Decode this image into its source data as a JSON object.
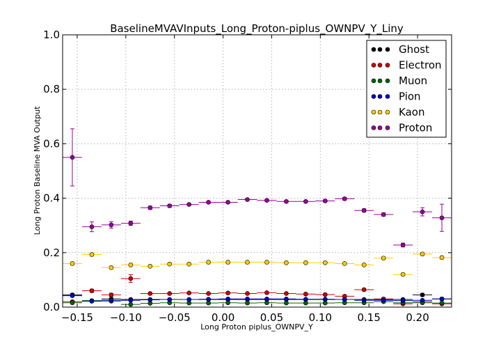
{
  "chart_data": {
    "type": "scatter",
    "title": "BaselineMVAVInputs_Long_Proton-piplus_OWNPV_Y_Liny",
    "xlabel": "Long Proton piplus_OWNPV_Y",
    "ylabel": "Long Proton Baseline MVA Output",
    "xlim": [
      -0.165,
      0.235
    ],
    "ylim": [
      0.0,
      1.0
    ],
    "x_ticks": [
      "−0.15",
      "−0.10",
      "−0.05",
      "0.00",
      "0.05",
      "0.10",
      "0.15",
      "0.20"
    ],
    "y_ticks": [
      "0.0",
      "0.2",
      "0.4",
      "0.6",
      "0.8",
      "1.0"
    ],
    "grid": true,
    "legend_position": "top-right",
    "bin_half_width": 0.01,
    "x": [
      -0.155,
      -0.135,
      -0.115,
      -0.095,
      -0.075,
      -0.055,
      -0.035,
      -0.015,
      0.005,
      0.025,
      0.045,
      0.065,
      0.085,
      0.105,
      0.125,
      0.145,
      0.165,
      0.185,
      0.205,
      0.225
    ],
    "series": [
      {
        "name": "Ghost",
        "color": "#000000",
        "values": [
          0.045,
          0.022,
          0.03,
          0.028,
          0.028,
          0.028,
          0.028,
          0.028,
          0.028,
          0.028,
          0.028,
          0.028,
          0.028,
          0.028,
          0.028,
          0.028,
          0.028,
          0.028,
          0.045,
          0.03
        ],
        "errors": [
          0.005,
          0.003,
          0.003,
          0.003,
          0.002,
          0.002,
          0.002,
          0.002,
          0.002,
          0.002,
          0.002,
          0.002,
          0.002,
          0.002,
          0.002,
          0.002,
          0.003,
          0.003,
          0.005,
          0.005
        ]
      },
      {
        "name": "Electron",
        "color": "#cc0000",
        "values": [
          0.02,
          0.06,
          0.045,
          0.105,
          0.05,
          0.05,
          0.052,
          0.05,
          0.052,
          0.05,
          0.053,
          0.05,
          0.048,
          0.046,
          0.04,
          0.064,
          0.03,
          0.012,
          0.02,
          0.012
        ],
        "errors": [
          0.004,
          0.006,
          0.006,
          0.014,
          0.004,
          0.003,
          0.003,
          0.003,
          0.003,
          0.003,
          0.003,
          0.003,
          0.003,
          0.003,
          0.004,
          0.005,
          0.004,
          0.003,
          0.004,
          0.003
        ],
        "marker": "o"
      },
      {
        "name": "Muon",
        "color": "#006400",
        "values": [
          0.016,
          0.024,
          0.022,
          0.01,
          0.014,
          0.016,
          0.015,
          0.015,
          0.016,
          0.015,
          0.016,
          0.015,
          0.015,
          0.015,
          0.016,
          0.016,
          0.02,
          0.016,
          0.016,
          0.015
        ],
        "errors": [
          0.003,
          0.003,
          0.003,
          0.002,
          0.002,
          0.002,
          0.002,
          0.002,
          0.002,
          0.002,
          0.002,
          0.002,
          0.002,
          0.002,
          0.002,
          0.002,
          0.003,
          0.003,
          0.003,
          0.003
        ]
      },
      {
        "name": "Pion",
        "color": "#0000cc",
        "values": [
          0.042,
          0.022,
          0.025,
          0.025,
          0.027,
          0.028,
          0.028,
          0.029,
          0.03,
          0.03,
          0.03,
          0.03,
          0.029,
          0.029,
          0.028,
          0.025,
          0.025,
          0.024,
          0.025,
          0.03
        ],
        "errors": [
          0.004,
          0.003,
          0.003,
          0.002,
          0.002,
          0.002,
          0.002,
          0.002,
          0.002,
          0.002,
          0.002,
          0.002,
          0.002,
          0.002,
          0.002,
          0.002,
          0.003,
          0.003,
          0.003,
          0.004
        ]
      },
      {
        "name": "Kaon",
        "color": "#ffcc00",
        "values": [
          0.16,
          0.193,
          0.145,
          0.155,
          0.15,
          0.158,
          0.158,
          0.165,
          0.165,
          0.165,
          0.165,
          0.163,
          0.163,
          0.163,
          0.16,
          0.155,
          0.18,
          0.12,
          0.195,
          0.182
        ],
        "errors": [
          0.006,
          0.006,
          0.005,
          0.004,
          0.003,
          0.003,
          0.003,
          0.003,
          0.003,
          0.003,
          0.003,
          0.003,
          0.003,
          0.003,
          0.003,
          0.003,
          0.004,
          0.004,
          0.006,
          0.006
        ]
      },
      {
        "name": "Proton",
        "color": "#990099",
        "values": [
          0.55,
          0.295,
          0.302,
          0.308,
          0.365,
          0.372,
          0.377,
          0.385,
          0.385,
          0.395,
          0.392,
          0.388,
          0.388,
          0.39,
          0.398,
          0.355,
          0.34,
          0.228,
          0.35,
          0.328
        ],
        "errors": [
          0.105,
          0.018,
          0.012,
          0.008,
          0.006,
          0.005,
          0.004,
          0.004,
          0.004,
          0.004,
          0.004,
          0.004,
          0.004,
          0.004,
          0.005,
          0.006,
          0.006,
          0.007,
          0.015,
          0.05
        ]
      }
    ]
  }
}
